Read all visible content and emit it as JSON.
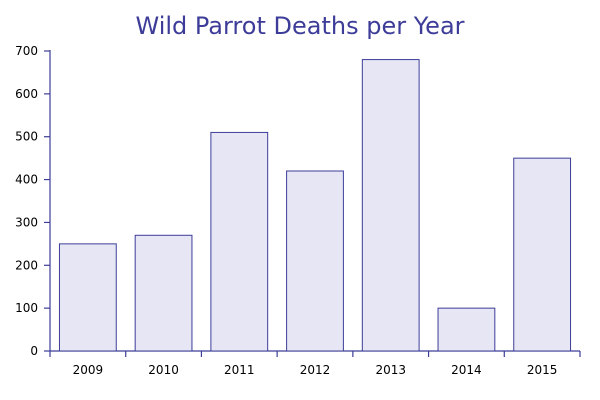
{
  "chart_data": {
    "type": "bar",
    "title": "Wild Parrot Deaths per Year",
    "xlabel": "",
    "ylabel": "",
    "categories": [
      "2009",
      "2010",
      "2011",
      "2012",
      "2013",
      "2014",
      "2015"
    ],
    "values": [
      250,
      270,
      510,
      420,
      680,
      100,
      450
    ],
    "ylim": [
      0,
      700
    ],
    "yticks": [
      0,
      100,
      200,
      300,
      400,
      500,
      600,
      700
    ],
    "grid": false,
    "legend": "none",
    "colors": {
      "bar_fill": "#e6e6f5",
      "bar_stroke": "#3d3d99",
      "axis": "#3d3d99",
      "title": "#3d3d99"
    }
  }
}
